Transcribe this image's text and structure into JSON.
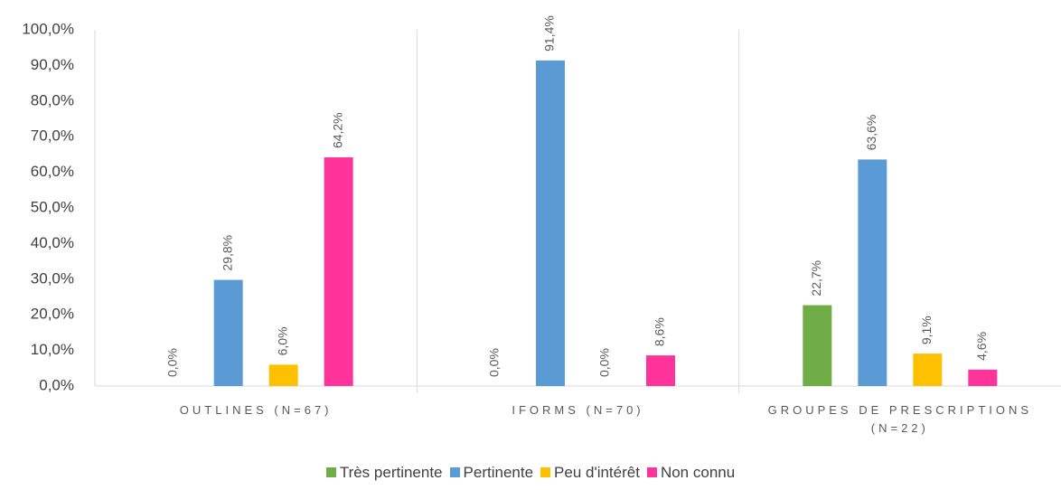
{
  "chart_data": {
    "type": "bar",
    "categories": [
      "OUTLINES (N=67)",
      "IFORMS (N=70)",
      "GROUPES DE PRESCRIPTIONS (N=22)"
    ],
    "series": [
      {
        "name": "Très pertinente",
        "color": "#70ad47",
        "values": [
          0,
          0,
          22.7
        ],
        "value_labels": [
          "0,0%",
          "0,0%",
          "22,7%"
        ]
      },
      {
        "name": "Pertinente",
        "color": "#5b9bd5",
        "values": [
          29.8,
          91.4,
          63.6
        ],
        "value_labels": [
          "29,8%",
          "91,4%",
          "63,6%"
        ]
      },
      {
        "name": "Peu d'intérêt",
        "color": "#ffc000",
        "values": [
          6.0,
          0,
          9.1
        ],
        "value_labels": [
          "6,0%",
          "0,0%",
          "9,1%"
        ]
      },
      {
        "name": "Non connu",
        "color": "#ff3399",
        "values": [
          64.2,
          8.6,
          4.6
        ],
        "value_labels": [
          "64,2%",
          "8,6%",
          "4,6%"
        ]
      }
    ],
    "ylim": [
      0,
      100
    ],
    "yticks": [
      {
        "value": 0,
        "label": "0,0%"
      },
      {
        "value": 10,
        "label": "10,0%"
      },
      {
        "value": 20,
        "label": "20,0%"
      },
      {
        "value": 30,
        "label": "30,0%"
      },
      {
        "value": 40,
        "label": "40,0%"
      },
      {
        "value": 50,
        "label": "50,0%"
      },
      {
        "value": 60,
        "label": "60,0%"
      },
      {
        "value": 70,
        "label": "70,0%"
      },
      {
        "value": 80,
        "label": "80,0%"
      },
      {
        "value": 90,
        "label": "90,0%"
      },
      {
        "value": 100,
        "label": "100,0%"
      }
    ],
    "grid": false,
    "legend": "bottom"
  }
}
